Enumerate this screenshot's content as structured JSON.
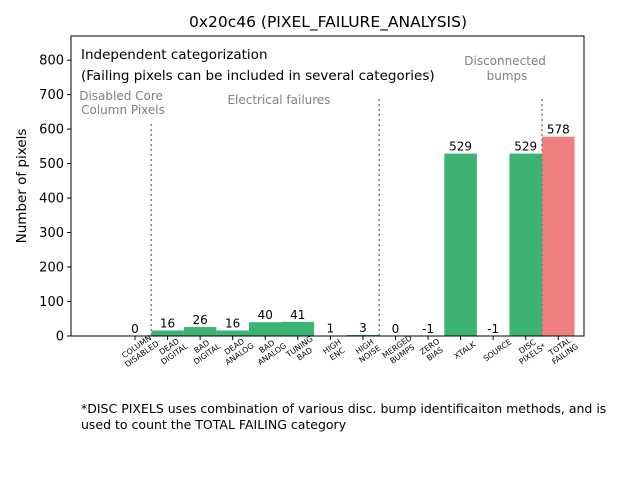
{
  "chart_data": {
    "type": "bar",
    "title": "0x20c46 (PIXEL_FAILURE_ANALYSIS)",
    "xlabel": "",
    "ylabel": "Number of pixels",
    "ylim": [
      0,
      870
    ],
    "yticks": [
      0,
      100,
      200,
      300,
      400,
      500,
      600,
      700,
      800
    ],
    "grid": false,
    "categories": [
      [
        "COLUMN",
        "DISABLED"
      ],
      [
        "DEAD",
        "DIGITAL"
      ],
      [
        "BAD",
        "DIGITAL"
      ],
      [
        "DEAD",
        "ANALOG"
      ],
      [
        "BAD",
        "ANALOG"
      ],
      [
        "TUNING",
        "BAD"
      ],
      [
        "HIGH",
        "ENC"
      ],
      [
        "HIGH",
        "NOISE"
      ],
      [
        "MERGED",
        "BUMPS"
      ],
      [
        "ZERO",
        "BIAS"
      ],
      [
        "XTALK"
      ],
      [
        "SOURCE"
      ],
      [
        "DISC",
        "PIXELS*"
      ],
      [
        "TOTAL",
        "FAILING"
      ]
    ],
    "values": [
      0,
      16,
      26,
      16,
      40,
      41,
      1,
      3,
      0,
      -1,
      529,
      -1,
      529,
      578
    ],
    "value_labels": [
      "0",
      "16",
      "26",
      "16",
      "40",
      "41",
      "1",
      "3",
      "0",
      "-1",
      "529",
      "-1",
      "529",
      "578"
    ],
    "bar_colors": [
      "#3cb371",
      "#3cb371",
      "#3cb371",
      "#3cb371",
      "#3cb371",
      "#3cb371",
      "#3cb371",
      "#3cb371",
      "#3cb371",
      "#3cb371",
      "#3cb371",
      "#3cb371",
      "#3cb371",
      "#f08080"
    ],
    "dividers": [
      {
        "after_index": 0,
        "ymax": 620
      },
      {
        "after_index": 7,
        "ymax": 690
      },
      {
        "after_index": 12,
        "ymax": 690
      }
    ],
    "annotations": {
      "note_line1": "Independent categorization",
      "note_line2": "(Failing pixels can be included in several categories)",
      "group_disabled": [
        "Disabled Core",
        "Column Pixels"
      ],
      "group_electrical": [
        "Electrical failures"
      ],
      "group_disconnected": [
        "Disconnected",
        "bumps"
      ]
    },
    "colors": {
      "bar": "#3cb371",
      "total": "#f08080",
      "group_text": "#808080",
      "divider": "#808080"
    }
  },
  "footnote": "*DISC PIXELS uses combination of various disc. bump identificaiton methods, and is used to count the TOTAL FAILING category"
}
